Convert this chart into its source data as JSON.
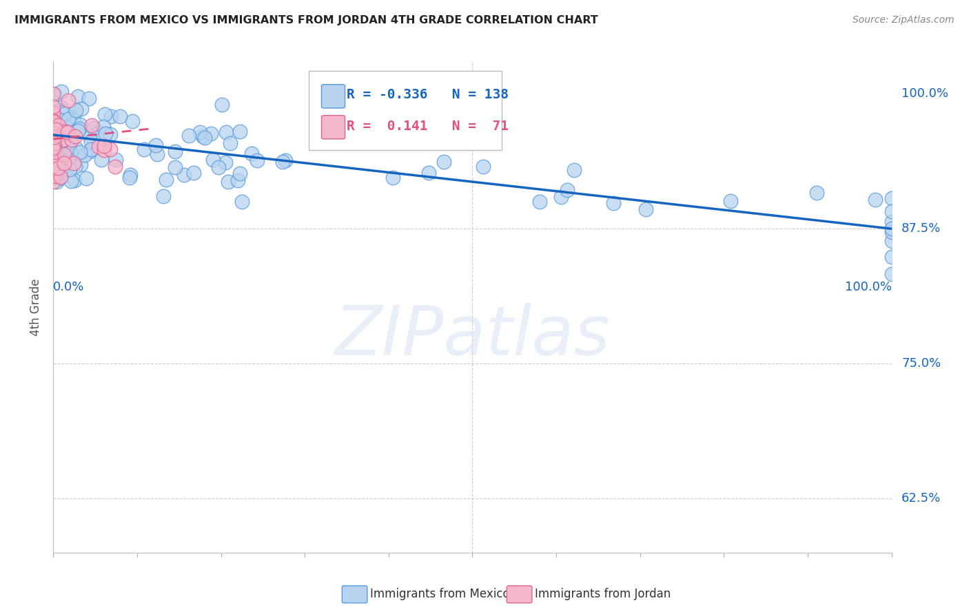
{
  "title": "IMMIGRANTS FROM MEXICO VS IMMIGRANTS FROM JORDAN 4TH GRADE CORRELATION CHART",
  "source": "Source: ZipAtlas.com",
  "ylabel": "4th Grade",
  "y_ticks": [
    0.625,
    0.75,
    0.875,
    1.0
  ],
  "y_tick_labels": [
    "62.5%",
    "75.0%",
    "87.5%",
    "100.0%"
  ],
  "legend_blue_R": "-0.336",
  "legend_blue_N": "138",
  "legend_pink_R": " 0.141",
  "legend_pink_N": " 71",
  "legend_blue_label": "Immigrants from Mexico",
  "legend_pink_label": "Immigrants from Jordan",
  "blue_scatter_color": "#b8d4f0",
  "blue_scatter_edge": "#5599dd",
  "pink_scatter_color": "#f5b8cc",
  "pink_scatter_edge": "#e06090",
  "blue_line_color": "#1565c0",
  "pink_line_color": "#e05080",
  "background_color": "#ffffff",
  "xlim": [
    0.0,
    1.0
  ],
  "ylim": [
    0.575,
    1.03
  ],
  "blue_trend_x0": 0.0,
  "blue_trend_y0": 0.962,
  "blue_trend_x1": 1.0,
  "blue_trend_y1": 0.875,
  "pink_trend_x0": 0.0,
  "pink_trend_y0": 0.958,
  "pink_trend_x1": 0.12,
  "pink_trend_y1": 0.968
}
